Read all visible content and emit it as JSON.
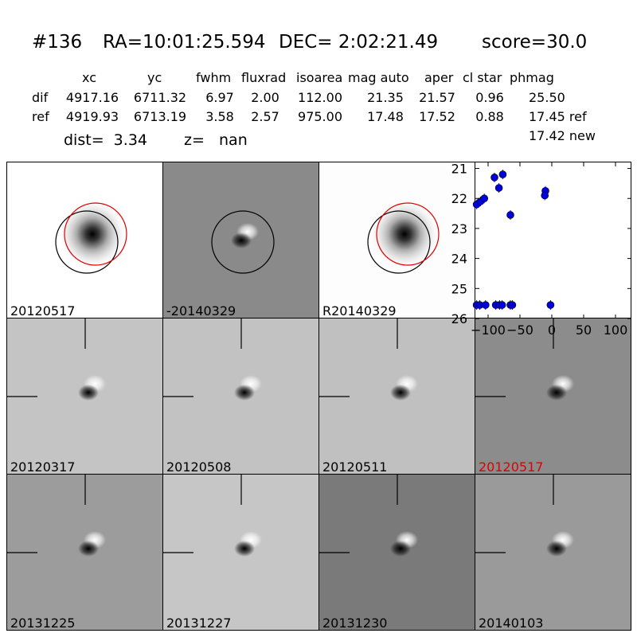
{
  "header": {
    "title_parts": {
      "id": "#136",
      "ra": "RA=10:01:25.594",
      "dec": "DEC= 2:02:21.49",
      "score": "score=30.0"
    },
    "columns": [
      "xc",
      "yc",
      "fwhm",
      "fluxrad",
      "isoarea",
      "mag auto",
      "aper",
      "cl star",
      "phmag"
    ],
    "rows": [
      {
        "label": "dif",
        "values": [
          "4917.16",
          "6711.32",
          "6.97",
          "2.00",
          "112.00",
          "21.35",
          "21.57",
          "0.96",
          "25.50"
        ]
      },
      {
        "label": "ref",
        "values": [
          "4919.93",
          "6713.19",
          "3.58",
          "2.57",
          "975.00",
          "17.48",
          "17.52",
          "0.88",
          "17.45 ref"
        ]
      }
    ],
    "phmag_extra": "17.42 new",
    "dist_text": "dist=  3.34",
    "z_text": "z=   nan"
  },
  "panels": [
    {
      "label": "20120517",
      "kind": "ref",
      "bg": "#ffffff",
      "label_color": "#000000"
    },
    {
      "label": "-20140329",
      "kind": "diff-circle",
      "bg": "#8a8a8a",
      "label_color": "#000000"
    },
    {
      "label": "R20140329",
      "kind": "ref",
      "bg": "#fdfdfd",
      "label_color": "#000000"
    },
    {
      "label": "20120317",
      "kind": "diff",
      "bg": "#c4c4c4",
      "label_color": "#000000"
    },
    {
      "label": "20120508",
      "kind": "diff",
      "bg": "#c2c2c2",
      "label_color": "#000000"
    },
    {
      "label": "20120511",
      "kind": "diff",
      "bg": "#c0c0c0",
      "label_color": "#000000"
    },
    {
      "label": "20120517",
      "kind": "diff-plain",
      "bg": "#8c8c8c",
      "label_color": "#e00000"
    },
    {
      "label": "20131225",
      "kind": "diff",
      "bg": "#9c9c9c",
      "label_color": "#000000"
    },
    {
      "label": "20131227",
      "kind": "diff",
      "bg": "#c6c6c6",
      "label_color": "#000000"
    },
    {
      "label": "20131230",
      "kind": "diff",
      "bg": "#7a7a7a",
      "label_color": "#000000"
    },
    {
      "label": "20140103",
      "kind": "diff-plain",
      "bg": "#9a9a9a",
      "label_color": "#000000"
    }
  ],
  "chart_data": {
    "type": "scatter",
    "xlim": [
      -120,
      125
    ],
    "ylim": [
      26,
      20.8
    ],
    "xticks": [
      -100,
      -50,
      0,
      50,
      100
    ],
    "yticks": [
      21,
      22,
      23,
      24,
      25,
      26
    ],
    "point_color": "#0000dd",
    "points": [
      {
        "x": -118,
        "y": 22.2
      },
      {
        "x": -112,
        "y": 22.1
      },
      {
        "x": -106,
        "y": 22.0
      },
      {
        "x": -90,
        "y": 21.3
      },
      {
        "x": -83,
        "y": 21.65
      },
      {
        "x": -77,
        "y": 21.2
      },
      {
        "x": -65,
        "y": 22.55
      },
      {
        "x": -10,
        "y": 21.75
      },
      {
        "x": -11,
        "y": 21.9
      },
      {
        "x": -118,
        "y": 25.55
      },
      {
        "x": -113,
        "y": 25.55
      },
      {
        "x": -104,
        "y": 25.55
      },
      {
        "x": -88,
        "y": 25.55
      },
      {
        "x": -82,
        "y": 25.55
      },
      {
        "x": -78,
        "y": 25.55
      },
      {
        "x": -65,
        "y": 25.55
      },
      {
        "x": -62,
        "y": 25.55
      },
      {
        "x": -2,
        "y": 25.55
      }
    ]
  }
}
